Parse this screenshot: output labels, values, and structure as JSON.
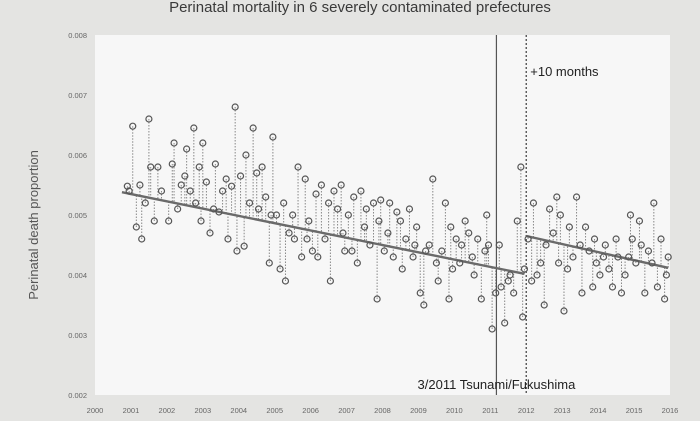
{
  "chart_data": {
    "type": "scatter",
    "title": "Perinatal mortality in 6 severely contaminated prefectures",
    "xlabel": "",
    "ylabel": "Perinatal death proportion",
    "xlim": [
      2000,
      2016
    ],
    "ylim": [
      0.002,
      0.008
    ],
    "x_ticks": [
      "2000",
      "2001",
      "2002",
      "2003",
      "2004",
      "2005",
      "2006",
      "2007",
      "2008",
      "2009",
      "2010",
      "2011",
      "2012",
      "2013",
      "2014",
      "2015",
      "2016"
    ],
    "y_ticks": [
      "0.002",
      "0.003",
      "0.004",
      "0.005",
      "0.006",
      "0.007",
      "0.008"
    ],
    "annotations": {
      "event_label": "3/2011 Tsunami/Fukushima",
      "event_x": 2011.17,
      "shift_label": "+10 months",
      "shift_x": 2012.0
    },
    "trend_segments": [
      {
        "name": "before",
        "x": [
          2000.75,
          2011.95
        ],
        "y": [
          0.00538,
          0.00402
        ]
      },
      {
        "name": "after",
        "x": [
          2012.0,
          2015.95
        ],
        "y": [
          0.00465,
          0.00412
        ]
      }
    ],
    "series": [
      {
        "name": "monthly proportion",
        "x": [
          2000.9,
          2000.95,
          2001.05,
          2001.15,
          2001.25,
          2001.3,
          2001.4,
          2001.5,
          2001.55,
          2001.65,
          2001.75,
          2001.85,
          2002.05,
          2002.15,
          2002.2,
          2002.3,
          2002.4,
          2002.5,
          2002.55,
          2002.65,
          2002.75,
          2002.8,
          2002.9,
          2002.95,
          2003.0,
          2003.1,
          2003.2,
          2003.3,
          2003.35,
          2003.45,
          2003.55,
          2003.65,
          2003.7,
          2003.8,
          2003.9,
          2003.95,
          2004.05,
          2004.15,
          2004.2,
          2004.3,
          2004.4,
          2004.5,
          2004.55,
          2004.65,
          2004.75,
          2004.85,
          2004.9,
          2004.95,
          2005.05,
          2005.15,
          2005.25,
          2005.3,
          2005.4,
          2005.5,
          2005.55,
          2005.65,
          2005.75,
          2005.85,
          2005.9,
          2005.95,
          2006.05,
          2006.15,
          2006.2,
          2006.3,
          2006.4,
          2006.5,
          2006.55,
          2006.65,
          2006.75,
          2006.85,
          2006.9,
          2006.95,
          2007.05,
          2007.15,
          2007.2,
          2007.3,
          2007.4,
          2007.5,
          2007.55,
          2007.65,
          2007.75,
          2007.85,
          2007.9,
          2007.95,
          2008.05,
          2008.15,
          2008.2,
          2008.3,
          2008.4,
          2008.5,
          2008.55,
          2008.65,
          2008.75,
          2008.85,
          2008.9,
          2008.95,
          2009.05,
          2009.15,
          2009.2,
          2009.3,
          2009.4,
          2009.5,
          2009.55,
          2009.65,
          2009.75,
          2009.85,
          2009.9,
          2009.95,
          2010.05,
          2010.15,
          2010.2,
          2010.3,
          2010.4,
          2010.5,
          2010.55,
          2010.65,
          2010.75,
          2010.85,
          2010.9,
          2010.95,
          2011.05,
          2011.15,
          2011.25,
          2011.3,
          2011.4,
          2011.5,
          2011.55,
          2011.65,
          2011.75,
          2011.85,
          2011.9,
          2011.95,
          2012.05,
          2012.15,
          2012.2,
          2012.3,
          2012.4,
          2012.5,
          2012.55,
          2012.65,
          2012.75,
          2012.85,
          2012.9,
          2012.95,
          2013.05,
          2013.15,
          2013.2,
          2013.3,
          2013.4,
          2013.5,
          2013.55,
          2013.65,
          2013.75,
          2013.85,
          2013.9,
          2013.95,
          2014.05,
          2014.15,
          2014.2,
          2014.3,
          2014.4,
          2014.5,
          2014.55,
          2014.65,
          2014.75,
          2014.85,
          2014.9,
          2014.95,
          2015.05,
          2015.15,
          2015.2,
          2015.3,
          2015.4,
          2015.5,
          2015.55,
          2015.65,
          2015.75,
          2015.85,
          2015.9,
          2015.95
        ],
        "y": [
          0.00548,
          0.0054,
          0.00648,
          0.0048,
          0.0055,
          0.0046,
          0.0052,
          0.0066,
          0.0058,
          0.0049,
          0.0058,
          0.0054,
          0.0049,
          0.00585,
          0.0062,
          0.0051,
          0.0055,
          0.00565,
          0.0061,
          0.0054,
          0.00645,
          0.0052,
          0.0058,
          0.0049,
          0.0062,
          0.00555,
          0.0047,
          0.0051,
          0.00585,
          0.00505,
          0.0054,
          0.0056,
          0.0046,
          0.00548,
          0.0068,
          0.0044,
          0.00565,
          0.00448,
          0.006,
          0.0052,
          0.00645,
          0.0057,
          0.0051,
          0.0058,
          0.0053,
          0.0042,
          0.005,
          0.0063,
          0.005,
          0.0041,
          0.0052,
          0.0039,
          0.0047,
          0.005,
          0.0046,
          0.0058,
          0.0043,
          0.0056,
          0.0046,
          0.0049,
          0.0044,
          0.00535,
          0.0043,
          0.0055,
          0.0046,
          0.0052,
          0.0039,
          0.0054,
          0.0051,
          0.0055,
          0.0047,
          0.0044,
          0.005,
          0.0044,
          0.0053,
          0.0042,
          0.0054,
          0.0048,
          0.0051,
          0.0045,
          0.0052,
          0.0036,
          0.0049,
          0.00525,
          0.0044,
          0.0047,
          0.0052,
          0.0043,
          0.00505,
          0.0049,
          0.0041,
          0.0046,
          0.0051,
          0.0043,
          0.0045,
          0.0048,
          0.0037,
          0.0035,
          0.0044,
          0.0045,
          0.0056,
          0.0042,
          0.0039,
          0.0044,
          0.0052,
          0.0036,
          0.0048,
          0.0041,
          0.0046,
          0.0042,
          0.0045,
          0.0049,
          0.0047,
          0.0043,
          0.004,
          0.0046,
          0.0036,
          0.0044,
          0.005,
          0.0045,
          0.0031,
          0.0037,
          0.0045,
          0.0038,
          0.0032,
          0.0039,
          0.004,
          0.0037,
          0.0049,
          0.0058,
          0.0033,
          0.0041,
          0.0046,
          0.0039,
          0.0052,
          0.004,
          0.0042,
          0.0035,
          0.0045,
          0.0051,
          0.0047,
          0.0053,
          0.0042,
          0.005,
          0.0034,
          0.0041,
          0.0048,
          0.0043,
          0.0053,
          0.0045,
          0.0037,
          0.0048,
          0.0044,
          0.0038,
          0.0046,
          0.0042,
          0.004,
          0.0043,
          0.0045,
          0.0041,
          0.0038,
          0.0046,
          0.0043,
          0.0037,
          0.004,
          0.0043,
          0.005,
          0.0046,
          0.0042,
          0.0049,
          0.0045,
          0.0037,
          0.0044,
          0.0042,
          0.0052,
          0.0038,
          0.0046,
          0.0036,
          0.004,
          0.0043
        ]
      }
    ]
  }
}
